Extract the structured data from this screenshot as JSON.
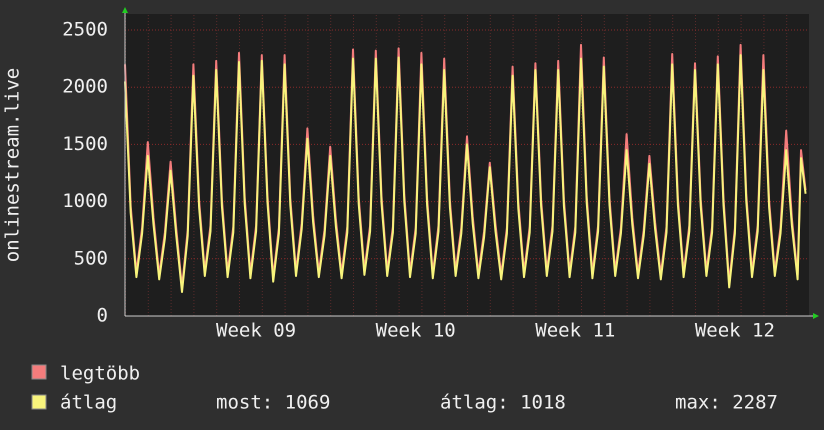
{
  "chart_data": {
    "type": "line",
    "ylabel": "onlinestream.live",
    "x": [
      0,
      0.25,
      0.5,
      0.75,
      1,
      1.25,
      1.5,
      1.75,
      2,
      2.25,
      2.5,
      2.75,
      3,
      3.25,
      3.5,
      3.75,
      4,
      4.25,
      4.5,
      4.75,
      5,
      5.25,
      5.5,
      5.75,
      6,
      6.25,
      6.5,
      6.75,
      7,
      7.25,
      7.5,
      7.75,
      8,
      8.25,
      8.5,
      8.75,
      9,
      9.25,
      9.5,
      9.75,
      10,
      10.25,
      10.5,
      10.75,
      11,
      11.25,
      11.5,
      11.75,
      12,
      12.25,
      12.5,
      12.75,
      13,
      13.25,
      13.5,
      13.75,
      14,
      14.25,
      14.5,
      14.75,
      15,
      15.25,
      15.5,
      15.75,
      16,
      16.25,
      16.5,
      16.75,
      17,
      17.25,
      17.5,
      17.75,
      18,
      18.25,
      18.5,
      18.75,
      19,
      19.25,
      19.5,
      19.75,
      20,
      20.25,
      20.5,
      20.75,
      21,
      21.25,
      21.5,
      21.75,
      22,
      22.25,
      22.5,
      22.75,
      23,
      23.25,
      23.5,
      23.75,
      24,
      24.25,
      24.5,
      24.75,
      25,
      25.25,
      25.5,
      25.75,
      26,
      26.25,
      26.5,
      26.75,
      27,
      27.25,
      27.5,
      27.75,
      28,
      28.25,
      28.5,
      28.75,
      29,
      29.25,
      29.5,
      29.65,
      29.85
    ],
    "series": [
      {
        "name": "legtöbb",
        "color": "#f47c7c",
        "values": [
          2200,
          960,
          380,
          770,
          1520,
          860,
          360,
          730,
          1350,
          760,
          250,
          750,
          2200,
          1010,
          390,
          790,
          2230,
          1020,
          380,
          780,
          2300,
          1040,
          370,
          790,
          2280,
          1050,
          340,
          770,
          2280,
          1030,
          390,
          810,
          1640,
          880,
          380,
          750,
          1480,
          840,
          370,
          780,
          2330,
          1040,
          400,
          790,
          2320,
          1050,
          390,
          780,
          2340,
          1060,
          380,
          770,
          2300,
          1030,
          370,
          790,
          2250,
          1010,
          390,
          770,
          1570,
          870,
          370,
          740,
          1340,
          800,
          360,
          770,
          2180,
          1000,
          380,
          780,
          2210,
          1020,
          390,
          790,
          2230,
          1020,
          380,
          780,
          2370,
          1050,
          370,
          790,
          2260,
          1030,
          390,
          770,
          1590,
          860,
          370,
          750,
          1400,
          820,
          360,
          780,
          2290,
          1030,
          380,
          790,
          2210,
          1020,
          390,
          780,
          2270,
          1030,
          290,
          770,
          2370,
          1060,
          380,
          790,
          2280,
          1010,
          390,
          770,
          1620,
          850,
          360,
          1450,
          1100
        ]
      },
      {
        "name": "átlag",
        "color": "#f8f47c",
        "values": [
          2050,
          900,
          340,
          720,
          1400,
          800,
          320,
          680,
          1270,
          700,
          210,
          700,
          2100,
          950,
          350,
          740,
          2150,
          960,
          340,
          730,
          2220,
          980,
          330,
          740,
          2230,
          990,
          300,
          720,
          2200,
          970,
          350,
          760,
          1550,
          820,
          340,
          700,
          1400,
          780,
          330,
          730,
          2250,
          980,
          360,
          740,
          2250,
          990,
          350,
          730,
          2260,
          1000,
          340,
          720,
          2200,
          970,
          330,
          740,
          2150,
          950,
          350,
          720,
          1500,
          810,
          330,
          690,
          1300,
          740,
          320,
          720,
          2100,
          940,
          340,
          730,
          2150,
          960,
          350,
          740,
          2150,
          960,
          340,
          730,
          2250,
          990,
          330,
          740,
          2180,
          970,
          350,
          720,
          1450,
          800,
          330,
          700,
          1330,
          760,
          320,
          730,
          2200,
          970,
          340,
          740,
          2150,
          960,
          350,
          730,
          2200,
          970,
          250,
          720,
          2280,
          1000,
          340,
          740,
          2150,
          950,
          350,
          720,
          1450,
          790,
          320,
          1380,
          1069
        ]
      }
    ],
    "stats": [
      "most: 1069",
      "átlag: 1018",
      "max: 2287"
    ],
    "xlim": [
      0,
      30
    ],
    "xticks": [
      {
        "value": 5.75,
        "label": "Week 09"
      },
      {
        "value": 12.75,
        "label": "Week 10"
      },
      {
        "value": 19.75,
        "label": "Week 11"
      },
      {
        "value": 26.75,
        "label": "Week 12"
      }
    ],
    "ylim": [
      0,
      2640
    ],
    "yticks": [
      0,
      500,
      1000,
      1500,
      2000,
      2500
    ],
    "grid": true
  }
}
